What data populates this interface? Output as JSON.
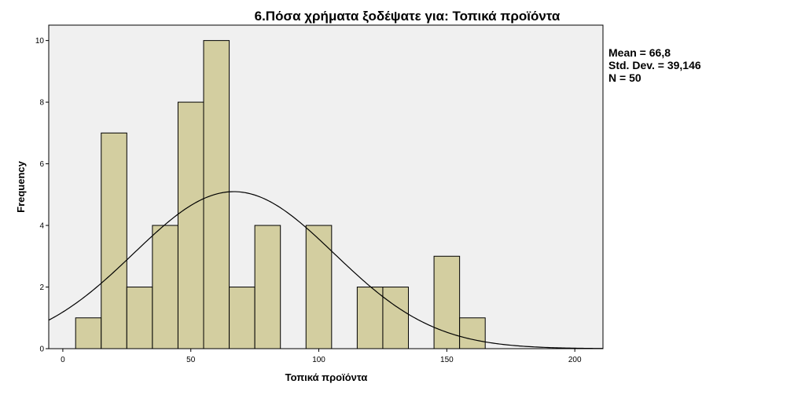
{
  "chart_data": {
    "type": "histogram",
    "title": "6.Πόσα χρήματα ξοδέψατε για: Τοπικά προϊόντα",
    "xlabel": "Τοπικά προϊόντα",
    "ylabel": "Frequency",
    "xlim": [
      -5.5,
      211
    ],
    "ylim": [
      0,
      10.5
    ],
    "xticks": [
      0,
      50,
      100,
      150,
      200
    ],
    "xtick_labels": [
      "0",
      "50",
      "100",
      "150",
      "200"
    ],
    "yticks": [
      0,
      2,
      4,
      6,
      8,
      10
    ],
    "ytick_labels": [
      "0",
      "2",
      "4",
      "6",
      "8",
      "10"
    ],
    "bin_edges": [
      5,
      15,
      25,
      35,
      45,
      55,
      65,
      75,
      85,
      95,
      105,
      115,
      125,
      135,
      145,
      155,
      165
    ],
    "counts": [
      1,
      7,
      2,
      4,
      8,
      10,
      2,
      4,
      0,
      4,
      0,
      2,
      2,
      0,
      3,
      1
    ],
    "normal_curve": {
      "mean": 66.8,
      "std_dev": 39.146,
      "n": 50,
      "bin_width": 10
    },
    "grid": false,
    "colors": {
      "bar_fill": "#d3cea0",
      "bar_stroke": "#000000",
      "plot_background": "#f0f0f0",
      "curve": "#000000"
    }
  },
  "stats": {
    "mean": "Mean = 66,8",
    "std_dev": "Std. Dev. = 39,146",
    "n": "N = 50"
  }
}
